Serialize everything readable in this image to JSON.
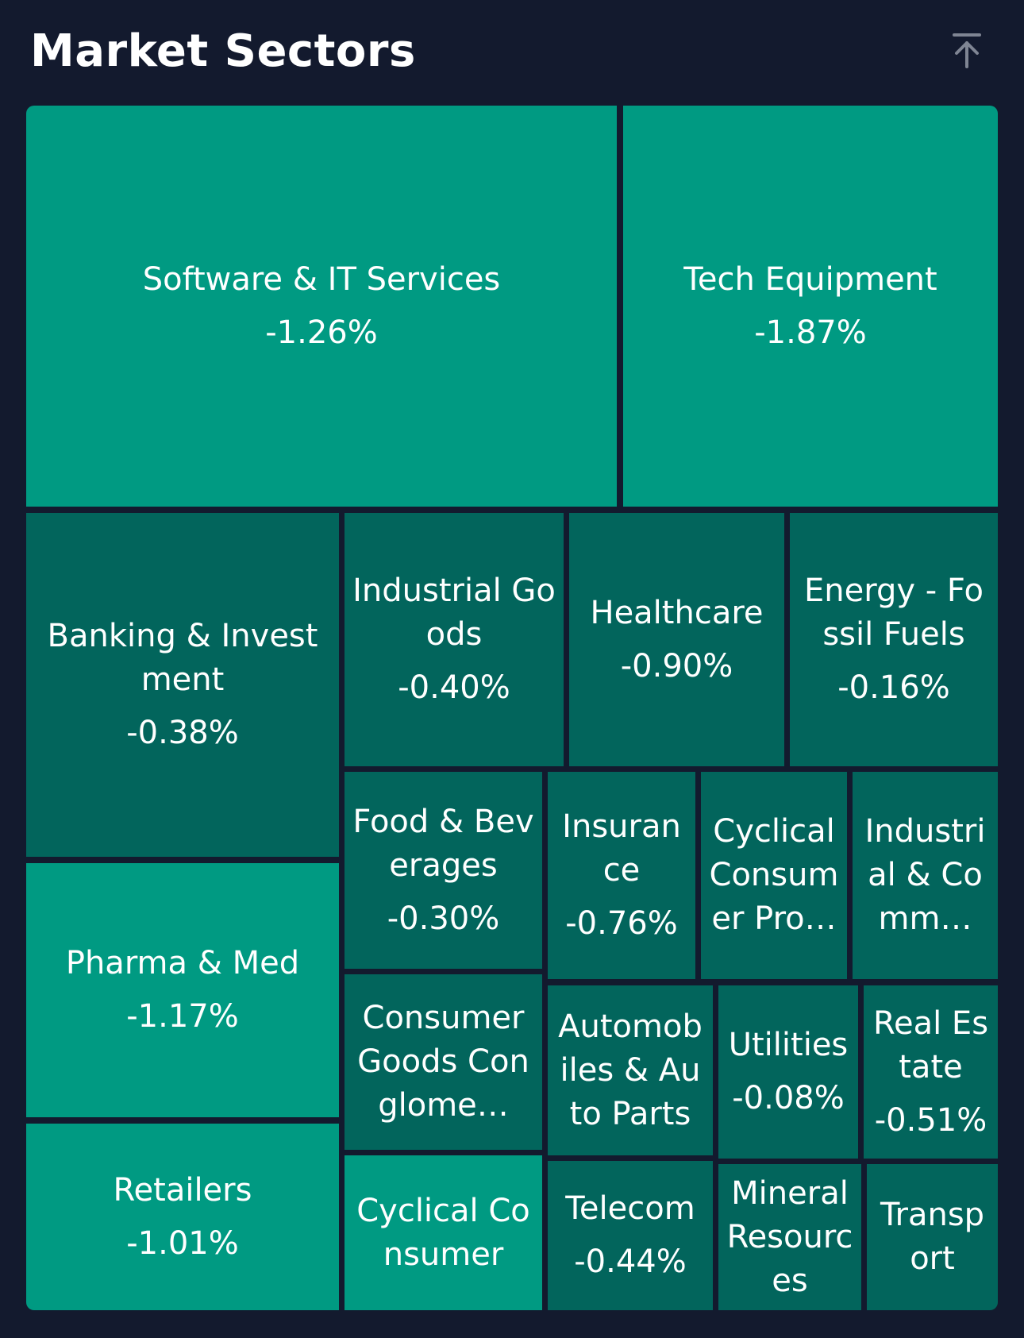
{
  "header": {
    "title": "Market Sectors",
    "scroll_top_icon": "arrow-up-to-line-icon"
  },
  "colors": {
    "background": "#131a2e",
    "tile_light": "#009a82",
    "tile_dark": "#02655c",
    "text": "#ffffff"
  },
  "sectors": [
    {
      "name": "Software & IT Services",
      "change": "-1.26%"
    },
    {
      "name": "Tech Equipment",
      "change": "-1.87%"
    },
    {
      "name": "Banking & Investment",
      "change": "-0.38%"
    },
    {
      "name": "Industrial Goods",
      "change": "-0.40%"
    },
    {
      "name": "Healthcare",
      "change": "-0.90%"
    },
    {
      "name": "Energy - Fossil Fuels",
      "change": "-0.16%"
    },
    {
      "name": "Pharma & Med",
      "change": "-1.17%"
    },
    {
      "name": "Food & Beverages",
      "change": "-0.30%"
    },
    {
      "name": "Insurance",
      "change": "-0.76%"
    },
    {
      "name": "Cyclical Consumer Pro…",
      "change": ""
    },
    {
      "name": "Industrial & Comm…",
      "change": ""
    },
    {
      "name": "Consumer Goods Conglome…",
      "change": ""
    },
    {
      "name": "Automobiles & Auto Parts",
      "change": ""
    },
    {
      "name": "Utilities",
      "change": "-0.08%"
    },
    {
      "name": "Real Estate",
      "change": "-0.51%"
    },
    {
      "name": "Retailers",
      "change": "-1.01%"
    },
    {
      "name": "Cyclical Consumer",
      "change": ""
    },
    {
      "name": "Telecom",
      "change": "-0.44%"
    },
    {
      "name": "Mineral Resources",
      "change": ""
    },
    {
      "name": "Transport",
      "change": ""
    }
  ]
}
